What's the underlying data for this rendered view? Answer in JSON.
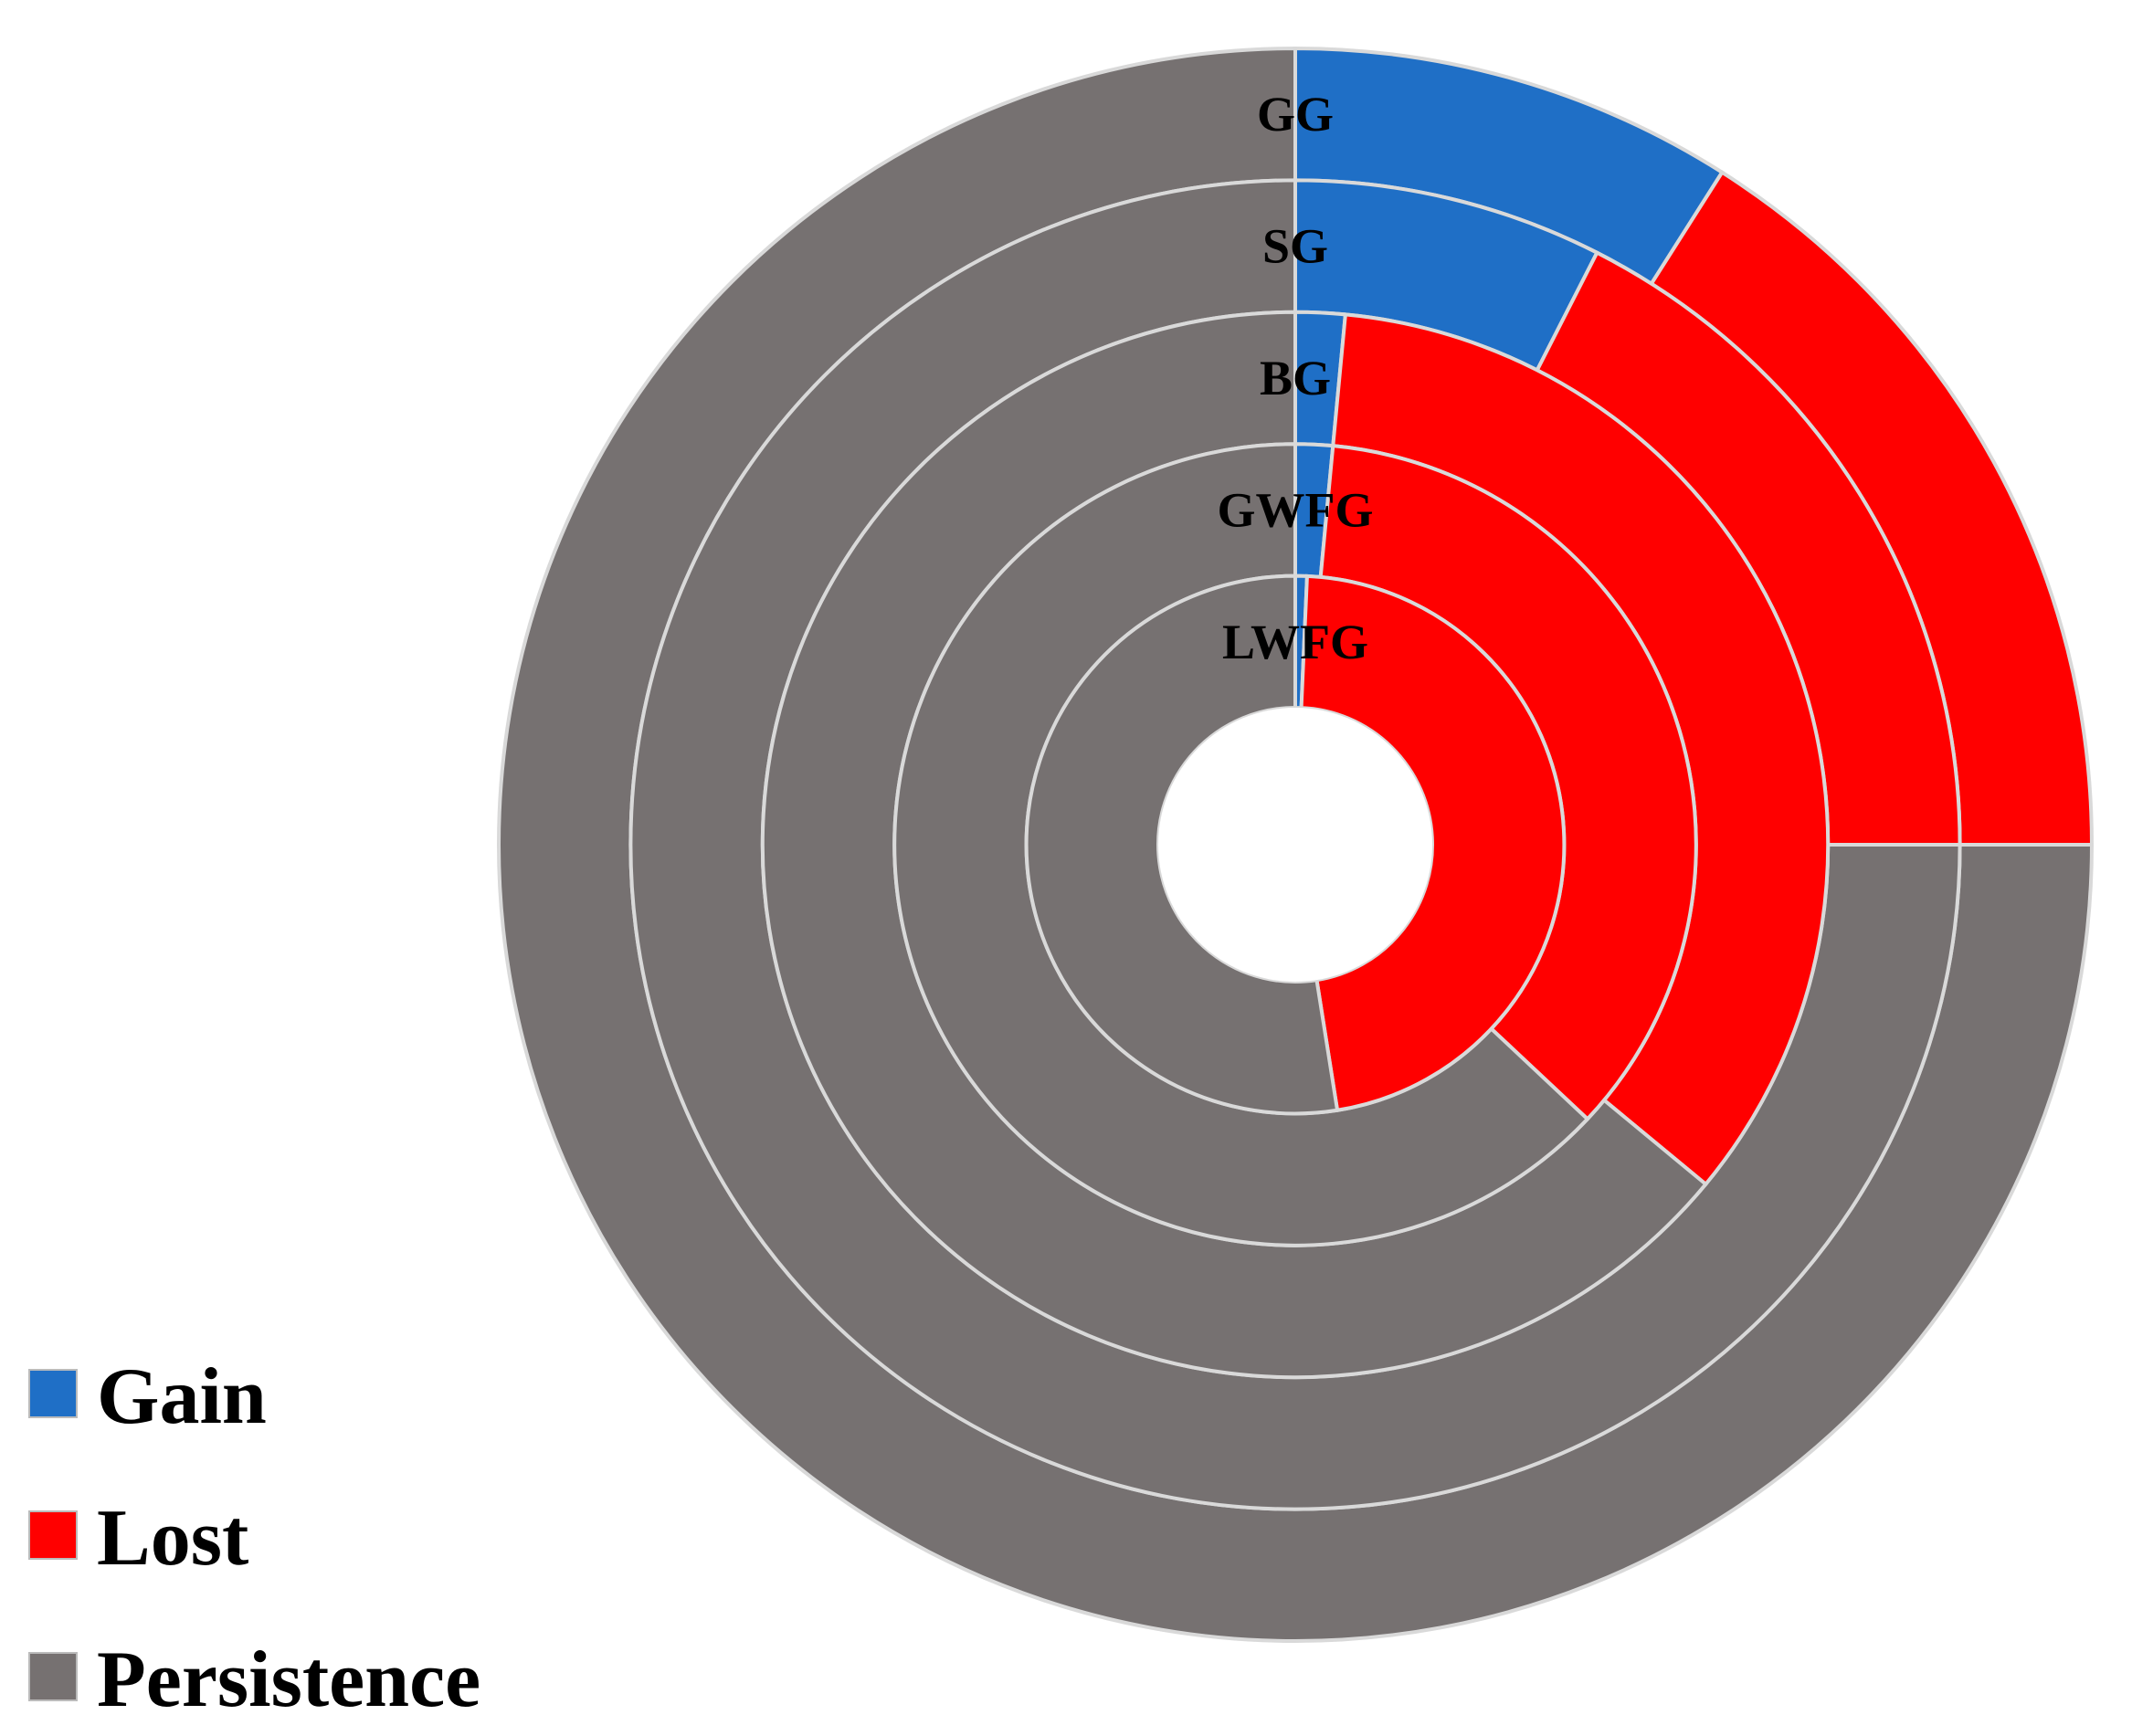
{
  "chart_data": {
    "type": "doughnut",
    "title": "",
    "legend": {
      "position": "bottom-left",
      "entries": [
        {
          "label": "Gain",
          "color": "#1F6FC6"
        },
        {
          "label": "Lost",
          "color": "#FF0000"
        },
        {
          "label": "Persistence",
          "color": "#767171"
        }
      ]
    },
    "categories": [
      "Gain",
      "Lost",
      "Persistence"
    ],
    "rings_outer_to_inner": [
      {
        "name": "GG",
        "values": [
          9.0,
          16.0,
          75.0
        ]
      },
      {
        "name": "SG",
        "values": [
          7.5,
          17.5,
          75.0
        ]
      },
      {
        "name": "BG",
        "values": [
          1.5,
          34.5,
          64.0
        ]
      },
      {
        "name": "GWFG",
        "values": [
          1.5,
          35.5,
          63.0
        ]
      },
      {
        "name": "LWFG",
        "values": [
          0.7,
          46.8,
          52.5
        ]
      }
    ],
    "colors": {
      "Gain": "#1F6FC6",
      "Lost": "#FF0000",
      "Persistence": "#767171",
      "separator": "#D9D9D9"
    }
  }
}
